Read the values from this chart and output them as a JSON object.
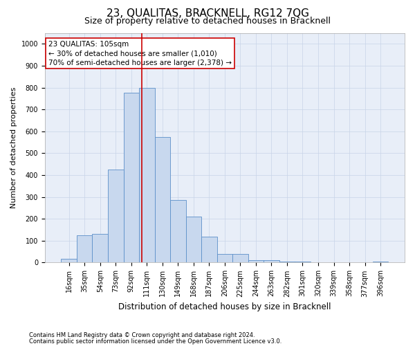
{
  "title": "23, QUALITAS, BRACKNELL, RG12 7QG",
  "subtitle": "Size of property relative to detached houses in Bracknell",
  "xlabel": "Distribution of detached houses by size in Bracknell",
  "ylabel": "Number of detached properties",
  "categories": [
    "16sqm",
    "35sqm",
    "54sqm",
    "73sqm",
    "92sqm",
    "111sqm",
    "130sqm",
    "149sqm",
    "168sqm",
    "187sqm",
    "206sqm",
    "225sqm",
    "244sqm",
    "263sqm",
    "282sqm",
    "301sqm",
    "320sqm",
    "339sqm",
    "358sqm",
    "377sqm",
    "396sqm"
  ],
  "values": [
    18,
    125,
    130,
    425,
    775,
    800,
    575,
    285,
    210,
    120,
    38,
    38,
    12,
    10,
    6,
    5,
    0,
    0,
    0,
    0,
    5
  ],
  "bar_color": "#c8d8ee",
  "bar_edge_color": "#5b8fc9",
  "vline_x": 4.68,
  "vline_color": "#cc0000",
  "ylim": [
    0,
    1050
  ],
  "yticks": [
    0,
    100,
    200,
    300,
    400,
    500,
    600,
    700,
    800,
    900,
    1000
  ],
  "annotation_line1": "23 QUALITAS: 105sqm",
  "annotation_line2": "← 30% of detached houses are smaller (1,010)",
  "annotation_line3": "70% of semi-detached houses are larger (2,378) →",
  "annotation_box_color": "#ffffff",
  "annotation_box_edge": "#cc0000",
  "footnote1": "Contains HM Land Registry data © Crown copyright and database right 2024.",
  "footnote2": "Contains public sector information licensed under the Open Government Licence v3.0.",
  "background_color": "#ffffff",
  "plot_bg_color": "#e8eef8",
  "grid_color": "#c8d4e8",
  "title_fontsize": 11,
  "subtitle_fontsize": 9,
  "tick_fontsize": 7,
  "ylabel_fontsize": 8,
  "xlabel_fontsize": 8.5,
  "annotation_fontsize": 7.5,
  "footnote_fontsize": 6
}
